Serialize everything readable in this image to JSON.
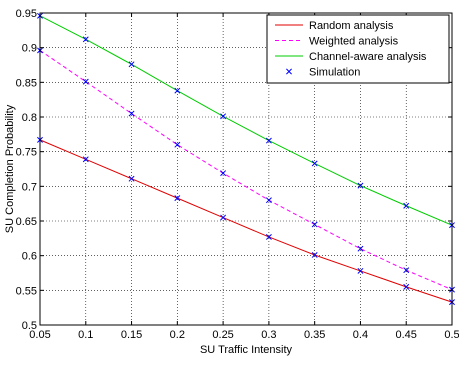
{
  "chart_data": {
    "type": "line",
    "xlabel": "SU Traffic Intensity",
    "ylabel": "SU Completion Probability",
    "xlim": [
      0.05,
      0.5
    ],
    "ylim": [
      0.5,
      0.95
    ],
    "xticks": [
      "0.05",
      "0.1",
      "0.15",
      "0.2",
      "0.25",
      "0.3",
      "0.35",
      "0.4",
      "0.45",
      "0.5"
    ],
    "yticks": [
      "0.5",
      "0.55",
      "0.6",
      "0.65",
      "0.7",
      "0.75",
      "0.8",
      "0.85",
      "0.9",
      "0.95"
    ],
    "grid": true,
    "legend_position": "top-right",
    "x": [
      0.05,
      0.1,
      0.15,
      0.2,
      0.25,
      0.3,
      0.35,
      0.4,
      0.45,
      0.5
    ],
    "series": [
      {
        "name": "Random analysis",
        "style": "solid",
        "color": "#e00000",
        "values": [
          0.767,
          0.739,
          0.711,
          0.683,
          0.655,
          0.627,
          0.601,
          0.578,
          0.555,
          0.533
        ]
      },
      {
        "name": "Weighted analysis",
        "style": "dashed",
        "color": "#ff00ff",
        "values": [
          0.896,
          0.851,
          0.805,
          0.76,
          0.719,
          0.68,
          0.645,
          0.61,
          0.579,
          0.551
        ]
      },
      {
        "name": "Channel-aware analysis",
        "style": "solid",
        "color": "#00cc00",
        "values": [
          0.946,
          0.912,
          0.876,
          0.838,
          0.801,
          0.766,
          0.733,
          0.701,
          0.672,
          0.644
        ]
      }
    ],
    "simulation": {
      "name": "Simulation",
      "marker": "x",
      "color": "#0000ff",
      "series_values": [
        [
          0.767,
          0.739,
          0.711,
          0.683,
          0.655,
          0.627,
          0.601,
          0.578,
          0.555,
          0.533
        ],
        [
          0.896,
          0.851,
          0.805,
          0.76,
          0.719,
          0.68,
          0.645,
          0.61,
          0.579,
          0.551
        ],
        [
          0.946,
          0.912,
          0.876,
          0.838,
          0.801,
          0.766,
          0.733,
          0.701,
          0.672,
          0.644
        ]
      ]
    }
  }
}
